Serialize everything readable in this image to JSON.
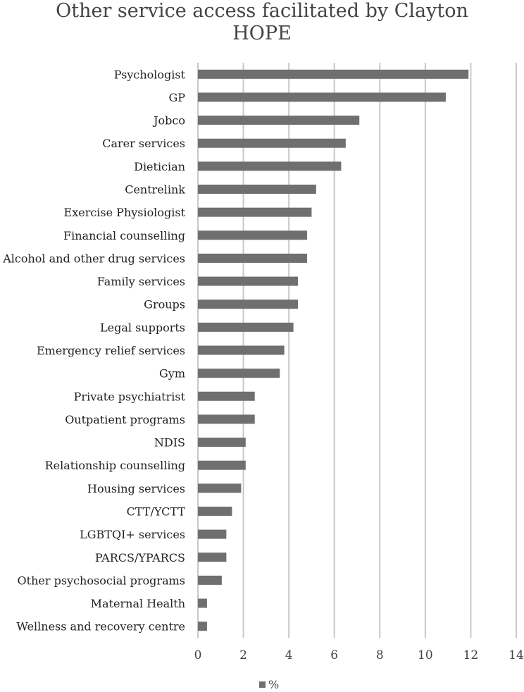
{
  "chart_data": {
    "type": "bar",
    "orientation": "horizontal",
    "title": "Other service access facilitated by Clayton HOPE",
    "title_lines": [
      "Other service access facilitated by Clayton",
      "HOPE"
    ],
    "categories": [
      "Psychologist",
      "GP",
      "Jobco",
      "Carer services",
      "Dietician",
      "Centrelink",
      "Exercise Physiologist",
      "Financial counselling",
      "Alcohol and other drug services",
      "Family services",
      "Groups",
      "Legal supports",
      "Emergency relief services",
      "Gym",
      "Private psychiatrist",
      "Outpatient programs",
      "NDIS",
      "Relationship counselling",
      "Housing services",
      "CTT/YCTT",
      "LGBTQI+ services",
      "PARCS/YPARCS",
      "Other psychosocial programs",
      "Maternal Health",
      "Wellness and recovery centre"
    ],
    "series": [
      {
        "name": "%",
        "values": [
          11.9,
          10.9,
          7.1,
          6.5,
          6.3,
          5.2,
          5.0,
          4.8,
          4.8,
          4.4,
          4.4,
          4.2,
          3.8,
          3.6,
          2.5,
          2.5,
          2.1,
          2.1,
          1.9,
          1.5,
          1.25,
          1.25,
          1.05,
          0.4,
          0.4
        ]
      }
    ],
    "xlim": [
      0,
      14
    ],
    "xticks": [
      "0",
      "2",
      "4",
      "6",
      "8",
      "10",
      "12",
      "14"
    ],
    "xlabel": "",
    "ylabel": "",
    "grid": true,
    "legend": "bottom",
    "colors": {
      "bar": "#6f6f6f",
      "grid": "#c8c8c8"
    }
  }
}
